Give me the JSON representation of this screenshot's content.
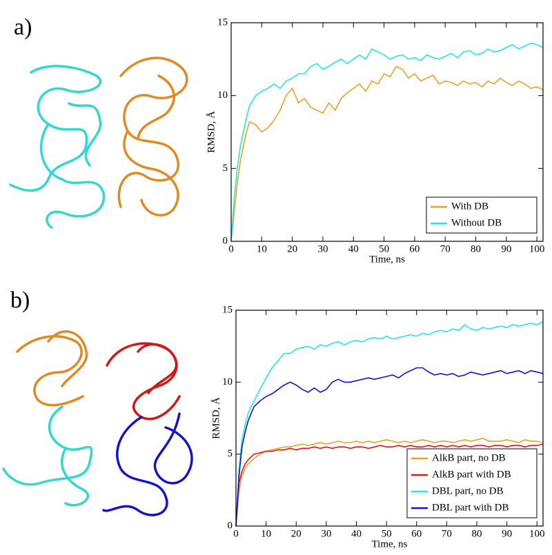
{
  "chart_data": [
    {
      "type": "line",
      "panel_label": "a)",
      "x_label": "Time, ns",
      "y_label": "RMSD, Å",
      "legend": "lower right",
      "xlim": [
        0,
        102
      ],
      "xticks": [
        0,
        10,
        20,
        30,
        40,
        50,
        60,
        70,
        80,
        90,
        100
      ],
      "ylim": [
        0,
        15
      ],
      "yticks": [
        0,
        5,
        10,
        15
      ],
      "x": [
        0,
        1,
        2,
        3,
        4,
        5,
        6,
        8,
        10,
        12,
        14,
        16,
        18,
        20,
        22,
        24,
        26,
        28,
        30,
        32,
        34,
        36,
        38,
        40,
        42,
        44,
        46,
        48,
        50,
        52,
        54,
        56,
        58,
        60,
        62,
        64,
        66,
        68,
        70,
        72,
        74,
        76,
        78,
        80,
        82,
        84,
        86,
        88,
        90,
        92,
        94,
        96,
        98,
        100,
        102
      ],
      "series": [
        {
          "name": "With DB",
          "color": "#f0a020",
          "values": [
            0,
            2,
            4,
            5.5,
            6.5,
            7.5,
            8.2,
            8,
            7.5,
            7.8,
            8.3,
            9,
            10,
            10.5,
            9.5,
            9.8,
            9.2,
            9,
            8.8,
            9.5,
            9,
            9.8,
            10.2,
            10.5,
            10.8,
            10.3,
            11,
            10.8,
            11.5,
            11.3,
            12,
            11.8,
            11.2,
            11.5,
            11,
            11.2,
            11.4,
            10.8,
            11,
            10.9,
            10.7,
            11,
            10.8,
            10.9,
            10.6,
            11,
            10.8,
            11.2,
            10.9,
            10.7,
            11,
            10.8,
            10.5,
            10.6,
            10.4
          ]
        },
        {
          "name": "Without DB",
          "color": "#20e8e8",
          "values": [
            0,
            3,
            5,
            6.5,
            7.5,
            8.5,
            9.3,
            10,
            10.3,
            10.5,
            10.8,
            10.5,
            11,
            11.2,
            11.5,
            11.5,
            12,
            12.2,
            11.8,
            12,
            12.3,
            12.5,
            12.2,
            12.5,
            12.8,
            12.5,
            13.2,
            13,
            12.8,
            12.5,
            12.7,
            12.8,
            12.5,
            12.6,
            12.4,
            12.8,
            12.6,
            12.5,
            12.7,
            12.9,
            12.6,
            13,
            13.1,
            12.8,
            12.9,
            13.2,
            13,
            13.1,
            13.3,
            13.5,
            13.2,
            13.4,
            13.6,
            13.5,
            13.3
          ]
        }
      ]
    },
    {
      "type": "line",
      "panel_label": "b)",
      "x_label": "Time, ns",
      "y_label": "RMSD, Å",
      "legend": "lower right",
      "xlim": [
        0,
        102
      ],
      "xticks": [
        0,
        10,
        20,
        30,
        40,
        50,
        60,
        70,
        80,
        90,
        100
      ],
      "ylim": [
        0,
        15
      ],
      "yticks": [
        0,
        5,
        10,
        15
      ],
      "x": [
        0,
        1,
        2,
        3,
        4,
        5,
        6,
        8,
        10,
        12,
        14,
        16,
        18,
        20,
        22,
        24,
        26,
        28,
        30,
        32,
        34,
        36,
        38,
        40,
        42,
        44,
        46,
        48,
        50,
        52,
        54,
        56,
        58,
        60,
        62,
        64,
        66,
        68,
        70,
        72,
        74,
        76,
        78,
        80,
        82,
        84,
        86,
        88,
        90,
        92,
        94,
        96,
        98,
        100,
        102
      ],
      "series": [
        {
          "name": "AlkB part, no DB",
          "color": "#f0a020",
          "values": [
            0,
            2.5,
            3.5,
            4,
            4.3,
            4.5,
            4.7,
            5,
            5.2,
            5.3,
            5.4,
            5.5,
            5.5,
            5.6,
            5.7,
            5.6,
            5.7,
            5.8,
            5.7,
            5.8,
            5.9,
            5.8,
            5.8,
            5.9,
            5.8,
            5.9,
            5.8,
            5.9,
            6,
            5.9,
            5.8,
            5.9,
            5.8,
            5.9,
            6,
            5.9,
            5.8,
            5.9,
            5.9,
            5.8,
            5.9,
            6,
            5.9,
            6,
            6.1,
            5.9,
            5.9,
            5.9,
            6,
            5.9,
            5.8,
            6,
            5.9,
            5.9,
            5.8
          ]
        },
        {
          "name": "AlkB part with DB",
          "color": "#f01010",
          "values": [
            0,
            3,
            3.8,
            4.3,
            4.6,
            4.8,
            5,
            5.1,
            5.2,
            5.2,
            5.3,
            5.3,
            5.4,
            5.3,
            5.4,
            5.4,
            5.5,
            5.4,
            5.5,
            5.4,
            5.5,
            5.5,
            5.4,
            5.5,
            5.5,
            5.4,
            5.5,
            5.6,
            5.5,
            5.5,
            5.6,
            5.5,
            5.6,
            5.5,
            5.5,
            5.6,
            5.5,
            5.6,
            5.5,
            5.6,
            5.5,
            5.6,
            5.5,
            5.6,
            5.6,
            5.5,
            5.6,
            5.6,
            5.5,
            5.6,
            5.6,
            5.5,
            5.6,
            5.6,
            5.7
          ]
        },
        {
          "name": "DBL part, no DB",
          "color": "#20e8e8",
          "values": [
            0,
            4,
            6,
            7,
            7.8,
            8.3,
            8.7,
            9.5,
            10.3,
            11,
            11.5,
            12,
            12,
            12.3,
            12.4,
            12.5,
            12.3,
            12.6,
            12.5,
            12.7,
            12.8,
            12.6,
            12.8,
            12.9,
            12.8,
            13,
            13.1,
            13,
            13.2,
            13,
            13.1,
            13.2,
            13.3,
            13.2,
            13.4,
            13.3,
            13.5,
            13.6,
            13.5,
            13.7,
            13.6,
            14,
            13.7,
            13.6,
            13.8,
            13.7,
            13.8,
            13.9,
            13.8,
            14,
            13.9,
            14,
            14.1,
            14,
            14.2
          ]
        },
        {
          "name": "DBL part with DB",
          "color": "#1010e0",
          "values": [
            0,
            3.5,
            5.5,
            6.5,
            7.3,
            7.8,
            8.3,
            8.7,
            9,
            9.2,
            9.5,
            9.8,
            10,
            9.8,
            9.5,
            9.3,
            9.6,
            9.3,
            9.5,
            10,
            10.2,
            10,
            10,
            10.1,
            10.2,
            10.3,
            10.2,
            10.3,
            10.4,
            10.5,
            10.3,
            10.6,
            10.8,
            11,
            11,
            10.7,
            10.5,
            10.6,
            10.5,
            10.6,
            10.4,
            10.5,
            10.7,
            10.6,
            10.5,
            10.6,
            10.7,
            10.8,
            10.6,
            10.7,
            10.8,
            10.6,
            10.8,
            10.7,
            10.6
          ]
        }
      ]
    }
  ]
}
